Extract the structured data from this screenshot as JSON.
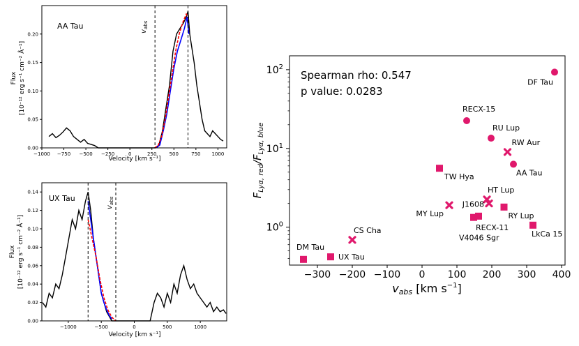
{
  "colors": {
    "star_marker": "#e0186c",
    "spectrum": "#000000",
    "absorption": "#0000ff",
    "fit": "#ff0000",
    "axis": "#000000"
  },
  "chart_data": [
    {
      "type": "line",
      "title": "AA Tau",
      "xlabel": "Velocity [km s⁻¹]",
      "ylabel_line1": "Flux",
      "ylabel_line2": "[10⁻¹² erg s⁻¹ cm⁻² Å⁻¹]",
      "xlim": [
        -1000,
        1100
      ],
      "ylim": [
        0,
        0.25
      ],
      "xticks": [
        -1000,
        -750,
        -500,
        -250,
        0,
        250,
        500,
        750,
        1000
      ],
      "xtick_labels": [
        "−1000",
        "−750",
        "−500",
        "−250",
        "0",
        "250",
        "500",
        "750",
        "1000"
      ],
      "yticks": [
        0,
        0.05,
        0.1,
        0.15,
        0.2
      ],
      "ytick_labels": [
        "0.00",
        "0.05",
        "0.10",
        "0.15",
        "0.20"
      ],
      "vlines": [
        285,
        660
      ],
      "vline_label": "v_abs",
      "vline_label_text": "v",
      "vline_label_sub": "abs",
      "series": [
        {
          "name": "spectrum",
          "x": [
            -920,
            -880,
            -840,
            -800,
            -760,
            -720,
            -680,
            -640,
            -600,
            -560,
            -520,
            -480,
            -440,
            -400,
            -360,
            -300,
            -250,
            -200,
            -150,
            -100,
            -50,
            0,
            50,
            100,
            150,
            200,
            250,
            290,
            330,
            370,
            410,
            450,
            490,
            530,
            570,
            610,
            640,
            660,
            680,
            700,
            730,
            760,
            790,
            820,
            850,
            880,
            910,
            940,
            970,
            1000,
            1030,
            1060
          ],
          "y": [
            0.02,
            0.025,
            0.018,
            0.022,
            0.028,
            0.035,
            0.03,
            0.02,
            0.015,
            0.01,
            0.015,
            0.008,
            0.006,
            0.004,
            0.0,
            0.0,
            0.0,
            0.0,
            0.0,
            0.0,
            0.0,
            0.0,
            0.0,
            0.0,
            0.0,
            0.0,
            0.0,
            0.0,
            0.005,
            0.03,
            0.07,
            0.11,
            0.17,
            0.2,
            0.21,
            0.22,
            0.23,
            0.24,
            0.2,
            0.18,
            0.15,
            0.11,
            0.08,
            0.05,
            0.03,
            0.025,
            0.02,
            0.03,
            0.025,
            0.02,
            0.015,
            0.012
          ]
        },
        {
          "name": "absorption",
          "x": [
            300,
            340,
            380,
            420,
            460,
            500,
            540,
            580,
            620,
            650,
            670
          ],
          "y": [
            0.0,
            0.005,
            0.03,
            0.06,
            0.1,
            0.14,
            0.17,
            0.19,
            0.21,
            0.23,
            0.2
          ]
        },
        {
          "name": "fit",
          "x": [
            280,
            320,
            360,
            400,
            440,
            480,
            520,
            560,
            600,
            640,
            660
          ],
          "y": [
            0.0,
            0.004,
            0.02,
            0.05,
            0.09,
            0.13,
            0.17,
            0.2,
            0.22,
            0.235,
            0.23
          ]
        }
      ]
    },
    {
      "type": "line",
      "title": "UX Tau",
      "xlabel": "Velocity [km s⁻¹]",
      "ylabel_line1": "Flux",
      "ylabel_line2": "[10⁻¹² erg s⁻¹ cm⁻² Å⁻¹]",
      "xlim": [
        -1400,
        1400
      ],
      "ylim": [
        0,
        0.15
      ],
      "xticks": [
        -1000,
        -500,
        0,
        500,
        1000
      ],
      "xtick_labels": [
        "−1000",
        "−500",
        "0",
        "500",
        "1000"
      ],
      "yticks": [
        0,
        0.02,
        0.04,
        0.06,
        0.08,
        0.1,
        0.12,
        0.14
      ],
      "ytick_labels": [
        "0.00",
        "0.02",
        "0.04",
        "0.06",
        "0.08",
        "0.10",
        "0.12",
        "0.14"
      ],
      "vlines": [
        -700,
        -280
      ],
      "vline_label": "v_abs",
      "vline_label_text": "v",
      "vline_label_sub": "abs",
      "series": [
        {
          "name": "spectrum",
          "x": [
            -1390,
            -1340,
            -1290,
            -1240,
            -1190,
            -1140,
            -1090,
            -1040,
            -990,
            -940,
            -890,
            -840,
            -790,
            -740,
            -700,
            -660,
            -620,
            -580,
            -540,
            -500,
            -460,
            -420,
            -380,
            -340,
            -300,
            -260,
            -200,
            -100,
            0,
            100,
            200,
            240,
            300,
            350,
            400,
            450,
            500,
            550,
            600,
            650,
            700,
            750,
            800,
            850,
            900,
            950,
            1000,
            1050,
            1100,
            1150,
            1200,
            1250,
            1300,
            1350,
            1390
          ],
          "y": [
            0.02,
            0.015,
            0.03,
            0.025,
            0.04,
            0.035,
            0.05,
            0.07,
            0.09,
            0.11,
            0.1,
            0.12,
            0.11,
            0.13,
            0.14,
            0.12,
            0.09,
            0.07,
            0.05,
            0.03,
            0.02,
            0.01,
            0.005,
            0.0,
            0.0,
            0.0,
            0.0,
            0.0,
            0.0,
            0.0,
            0.0,
            0.0,
            0.02,
            0.03,
            0.025,
            0.015,
            0.03,
            0.02,
            0.04,
            0.03,
            0.05,
            0.06,
            0.045,
            0.035,
            0.04,
            0.03,
            0.025,
            0.02,
            0.015,
            0.02,
            0.01,
            0.015,
            0.01,
            0.012,
            0.008
          ]
        },
        {
          "name": "absorption",
          "x": [
            -700,
            -660,
            -620,
            -580,
            -540,
            -500,
            -460,
            -420,
            -380,
            -340
          ],
          "y": [
            0.13,
            0.11,
            0.09,
            0.07,
            0.05,
            0.03,
            0.02,
            0.012,
            0.006,
            0.002
          ]
        },
        {
          "name": "fit",
          "x": [
            -700,
            -640,
            -580,
            -520,
            -460,
            -400,
            -340,
            -280
          ],
          "y": [
            0.11,
            0.09,
            0.07,
            0.045,
            0.025,
            0.012,
            0.004,
            0.0
          ]
        }
      ]
    },
    {
      "type": "scatter",
      "title": "",
      "xlabel_main": "v",
      "xlabel_sub": "abs",
      "xlabel_units": " [km s",
      "xlabel_exp": "−1",
      "xlabel_close": "]",
      "ylabel_main_a": "F",
      "ylabel_sub_a": "Lyα, red",
      "ylabel_slash": "/",
      "ylabel_main_b": "F",
      "ylabel_sub_b": "Lyα, blue",
      "xlim": [
        -380,
        410
      ],
      "ylim": [
        0.33,
        150
      ],
      "yscale": "log",
      "xticks": [
        -300,
        -200,
        -100,
        0,
        100,
        200,
        300,
        400
      ],
      "xtick_labels": [
        "−300",
        "−200",
        "−100",
        "0",
        "100",
        "200",
        "300",
        "400"
      ],
      "yticks": [
        1,
        10,
        100
      ],
      "ytick_base": "10",
      "ytick_exponents": [
        "0",
        "1",
        "2"
      ],
      "stats": [
        "Spearman rho: 0.547",
        "p value: 0.0283"
      ],
      "points": [
        {
          "name": "DF Tau",
          "x": 380,
          "y": 93,
          "marker": "circle"
        },
        {
          "name": "RECX-15",
          "x": 128,
          "y": 22.5,
          "marker": "circle"
        },
        {
          "name": "RU Lup",
          "x": 198,
          "y": 13.5,
          "marker": "circle"
        },
        {
          "name": "RW Aur",
          "x": 245,
          "y": 9,
          "marker": "x"
        },
        {
          "name": "AA Tau",
          "x": 262,
          "y": 6.3,
          "marker": "circle"
        },
        {
          "name": "TW Hya",
          "x": 50,
          "y": 5.6,
          "marker": "square"
        },
        {
          "name": "HT Lup",
          "x": 186,
          "y": 2.25,
          "marker": "x"
        },
        {
          "name": "J1608",
          "x": 192,
          "y": 2.0,
          "marker": "x"
        },
        {
          "name": "MY Lup",
          "x": 78,
          "y": 1.9,
          "marker": "x"
        },
        {
          "name": "RY Lup",
          "x": 235,
          "y": 1.8,
          "marker": "square"
        },
        {
          "name": "RECX-11",
          "x": 162,
          "y": 1.38,
          "marker": "square"
        },
        {
          "name": "V4046 Sgr",
          "x": 148,
          "y": 1.33,
          "marker": "square"
        },
        {
          "name": "LkCa 15",
          "x": 318,
          "y": 1.06,
          "marker": "square"
        },
        {
          "name": "CS Cha",
          "x": -200,
          "y": 0.69,
          "marker": "x"
        },
        {
          "name": "UX Tau",
          "x": -262,
          "y": 0.42,
          "marker": "square"
        },
        {
          "name": "DM Tau",
          "x": -340,
          "y": 0.39,
          "marker": "square"
        }
      ]
    }
  ]
}
